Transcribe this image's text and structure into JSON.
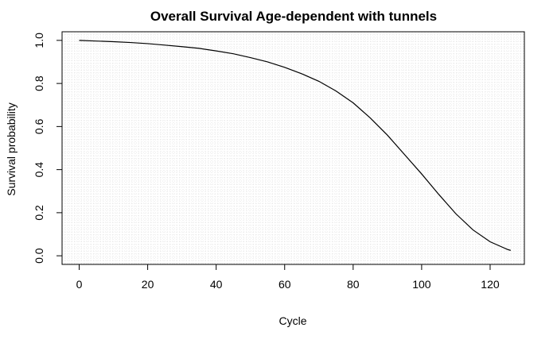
{
  "chart_data": {
    "type": "line",
    "title": "Overall Survival Age-dependent with tunnels",
    "xlabel": "Cycle",
    "ylabel": "Survival probability",
    "xlim": [
      -5,
      130
    ],
    "ylim": [
      -0.04,
      1.04
    ],
    "xticks": [
      0,
      20,
      40,
      60,
      80,
      100,
      120
    ],
    "xtick_labels": [
      "0",
      "20",
      "40",
      "60",
      "80",
      "100",
      "120"
    ],
    "yticks": [
      0.0,
      0.2,
      0.4,
      0.6,
      0.8,
      1.0
    ],
    "ytick_labels": [
      "0.0",
      "0.2",
      "0.4",
      "0.6",
      "0.8",
      "1.0"
    ],
    "grid": true,
    "grid_style": "dotted light gray, fine spacing",
    "series": [
      {
        "color": "#000000",
        "x": [
          0,
          5,
          10,
          15,
          20,
          25,
          30,
          35,
          40,
          45,
          50,
          55,
          60,
          65,
          70,
          75,
          80,
          85,
          90,
          95,
          100,
          105,
          110,
          115,
          120,
          125,
          126
        ],
        "y": [
          1.0,
          0.997,
          0.994,
          0.99,
          0.985,
          0.978,
          0.971,
          0.963,
          0.951,
          0.938,
          0.92,
          0.9,
          0.875,
          0.845,
          0.81,
          0.765,
          0.71,
          0.64,
          0.56,
          0.47,
          0.38,
          0.285,
          0.195,
          0.12,
          0.065,
          0.03,
          0.025
        ]
      }
    ]
  }
}
